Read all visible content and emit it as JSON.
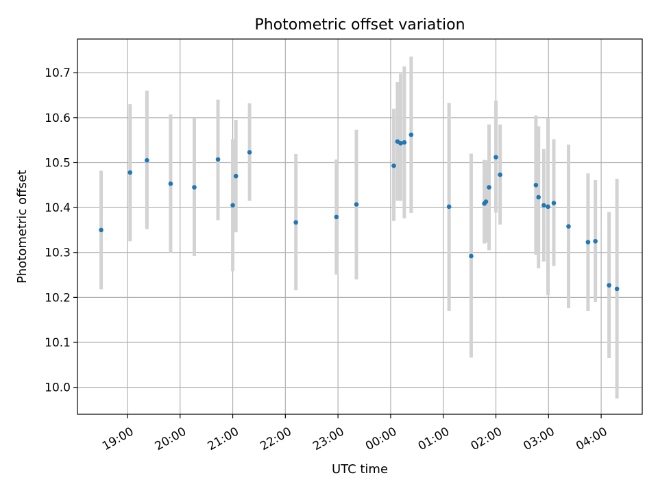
{
  "chart_data": {
    "type": "scatter",
    "title": "Photometric offset variation",
    "xlabel": "UTC time",
    "ylabel": "Photometric offset",
    "x_tick_labels": [
      "19:00",
      "20:00",
      "21:00",
      "22:00",
      "23:00",
      "00:00",
      "01:00",
      "02:00",
      "03:00",
      "04:00"
    ],
    "x_tick_hours": [
      19,
      20,
      21,
      22,
      23,
      24,
      25,
      26,
      27,
      28
    ],
    "y_ticks": [
      10.0,
      10.1,
      10.2,
      10.3,
      10.4,
      10.5,
      10.6,
      10.7
    ],
    "y_tick_labels": [
      "10.0",
      "10.1",
      "10.2",
      "10.3",
      "10.4",
      "10.5",
      "10.6",
      "10.7"
    ],
    "xlim_hours": [
      18.05,
      28.78
    ],
    "ylim": [
      9.94,
      10.775
    ],
    "grid": true,
    "colors": {
      "point": "#1f77b4",
      "errorbar": "#d3d3d3"
    },
    "series": [
      {
        "points": [
          {
            "t": 18.5,
            "y": 10.35,
            "yerr_low": 10.218,
            "yerr_high": 10.482
          },
          {
            "t": 19.05,
            "y": 10.478,
            "yerr_low": 10.325,
            "yerr_high": 10.63
          },
          {
            "t": 19.37,
            "y": 10.505,
            "yerr_low": 10.352,
            "yerr_high": 10.66
          },
          {
            "t": 19.82,
            "y": 10.453,
            "yerr_low": 10.3,
            "yerr_high": 10.607
          },
          {
            "t": 20.27,
            "y": 10.445,
            "yerr_low": 10.292,
            "yerr_high": 10.6
          },
          {
            "t": 20.72,
            "y": 10.507,
            "yerr_low": 10.372,
            "yerr_high": 10.64
          },
          {
            "t": 21.0,
            "y": 10.405,
            "yerr_low": 10.258,
            "yerr_high": 10.552
          },
          {
            "t": 21.06,
            "y": 10.47,
            "yerr_low": 10.345,
            "yerr_high": 10.595
          },
          {
            "t": 21.32,
            "y": 10.523,
            "yerr_low": 10.415,
            "yerr_high": 10.632
          },
          {
            "t": 22.2,
            "y": 10.367,
            "yerr_low": 10.216,
            "yerr_high": 10.519
          },
          {
            "t": 22.97,
            "y": 10.379,
            "yerr_low": 10.251,
            "yerr_high": 10.507
          },
          {
            "t": 23.35,
            "y": 10.407,
            "yerr_low": 10.24,
            "yerr_high": 10.573
          },
          {
            "t": 24.06,
            "y": 10.493,
            "yerr_low": 10.37,
            "yerr_high": 10.62
          },
          {
            "t": 24.13,
            "y": 10.547,
            "yerr_low": 10.415,
            "yerr_high": 10.679
          },
          {
            "t": 24.19,
            "y": 10.543,
            "yerr_low": 10.415,
            "yerr_high": 10.698
          },
          {
            "t": 24.26,
            "y": 10.545,
            "yerr_low": 10.376,
            "yerr_high": 10.714
          },
          {
            "t": 24.39,
            "y": 10.562,
            "yerr_low": 10.388,
            "yerr_high": 10.736
          },
          {
            "t": 25.11,
            "y": 10.402,
            "yerr_low": 10.17,
            "yerr_high": 10.633
          },
          {
            "t": 25.53,
            "y": 10.292,
            "yerr_low": 10.066,
            "yerr_high": 10.52
          },
          {
            "t": 25.78,
            "y": 10.409,
            "yerr_low": 10.32,
            "yerr_high": 10.506
          },
          {
            "t": 25.81,
            "y": 10.413,
            "yerr_low": 10.322,
            "yerr_high": 10.505
          },
          {
            "t": 25.87,
            "y": 10.445,
            "yerr_low": 10.305,
            "yerr_high": 10.585
          },
          {
            "t": 26.0,
            "y": 10.512,
            "yerr_low": 10.389,
            "yerr_high": 10.638
          },
          {
            "t": 26.08,
            "y": 10.473,
            "yerr_low": 10.362,
            "yerr_high": 10.585
          },
          {
            "t": 26.76,
            "y": 10.45,
            "yerr_low": 10.295,
            "yerr_high": 10.605
          },
          {
            "t": 26.81,
            "y": 10.423,
            "yerr_low": 10.265,
            "yerr_high": 10.581
          },
          {
            "t": 26.91,
            "y": 10.405,
            "yerr_low": 10.28,
            "yerr_high": 10.53
          },
          {
            "t": 26.99,
            "y": 10.402,
            "yerr_low": 10.205,
            "yerr_high": 10.6
          },
          {
            "t": 27.1,
            "y": 10.41,
            "yerr_low": 10.27,
            "yerr_high": 10.552
          },
          {
            "t": 27.38,
            "y": 10.358,
            "yerr_low": 10.176,
            "yerr_high": 10.54
          },
          {
            "t": 27.75,
            "y": 10.323,
            "yerr_low": 10.17,
            "yerr_high": 10.476
          },
          {
            "t": 27.89,
            "y": 10.325,
            "yerr_low": 10.19,
            "yerr_high": 10.461
          },
          {
            "t": 28.15,
            "y": 10.227,
            "yerr_low": 10.065,
            "yerr_high": 10.39
          },
          {
            "t": 28.3,
            "y": 10.219,
            "yerr_low": 9.975,
            "yerr_high": 10.464
          }
        ]
      }
    ]
  }
}
